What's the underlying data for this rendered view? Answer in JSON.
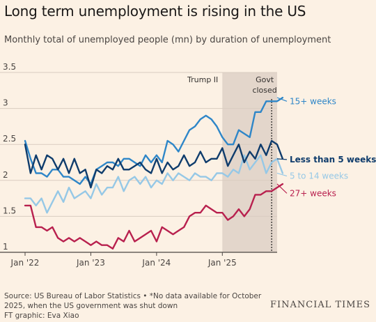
{
  "header": {
    "title": "Long term unemployment is rising in the US",
    "subtitle": "Monthly total of unemployed people (mn) by duration of unemployment"
  },
  "footer": {
    "source_line1": "Source: US Bureau of Labor Statistics • *No data available for October",
    "source_line2": "2025, when the US government was shut down",
    "credit": "FT graphic: Eva Xiao",
    "brand": "FINANCIAL TIMES"
  },
  "colors": {
    "background": "#fcf1e4",
    "shade": "#e3d6cb",
    "grid": "#d9ccc0",
    "series_15plus": "#2e86c8",
    "series_lt5": "#0f3c6c",
    "series_5to14": "#96c8e6",
    "series_27plus": "#b8204e"
  },
  "chart_data": {
    "type": "line",
    "title": "Long term unemployment is rising in the US",
    "subtitle": "Monthly total of unemployed people (mn) by duration of unemployment",
    "xlabel": "",
    "ylabel": "",
    "ylim": [
      1,
      3.5
    ],
    "yticks": [
      1,
      1.5,
      2,
      2.5,
      3,
      3.5
    ],
    "xticks": [
      "Jan '22",
      "Jan '23",
      "Jan '24",
      "Jan '25"
    ],
    "grid": true,
    "legend": "direct labels at right end of lines",
    "x_start": "2022-01",
    "x_end": "2025-11",
    "annotations": [
      {
        "label": "Trump II",
        "type": "shaded_region",
        "from": "2025-01",
        "to": "2025-11"
      },
      {
        "label": "Govt",
        "label2": "closed",
        "type": "dotted_vline",
        "at": "2025-10"
      }
    ],
    "series": [
      {
        "name": "15+ weeks",
        "color": "#2e86c8",
        "values": [
          2.55,
          2.3,
          2.1,
          2.1,
          2.05,
          2.15,
          2.15,
          2.05,
          2.05,
          2.0,
          1.95,
          2.05,
          1.95,
          2.15,
          2.2,
          2.25,
          2.25,
          2.2,
          2.3,
          2.3,
          2.25,
          2.2,
          2.35,
          2.25,
          2.35,
          2.25,
          2.55,
          2.5,
          2.4,
          2.55,
          2.7,
          2.75,
          2.85,
          2.9,
          2.85,
          2.75,
          2.6,
          2.5,
          2.5,
          2.7,
          2.65,
          2.6,
          2.95,
          2.95,
          3.1,
          3.1,
          3.1,
          3.15
        ]
      },
      {
        "name": "Less than 5 weeks",
        "color": "#0f3c6c",
        "values": [
          2.5,
          2.1,
          2.35,
          2.15,
          2.35,
          2.3,
          2.15,
          2.3,
          2.1,
          2.3,
          2.1,
          2.15,
          1.9,
          2.15,
          2.1,
          2.2,
          2.15,
          2.3,
          2.15,
          2.15,
          2.2,
          2.25,
          2.15,
          2.1,
          2.3,
          2.1,
          2.25,
          2.15,
          2.2,
          2.35,
          2.2,
          2.25,
          2.4,
          2.25,
          2.3,
          2.3,
          2.45,
          2.2,
          2.35,
          2.5,
          2.25,
          2.4,
          2.3,
          2.5,
          2.35,
          2.55,
          2.5,
          2.3
        ]
      },
      {
        "name": "5 to 14 weeks",
        "color": "#96c8e6",
        "values": [
          1.75,
          1.75,
          1.65,
          1.75,
          1.55,
          1.7,
          1.85,
          1.7,
          1.9,
          1.75,
          1.8,
          1.85,
          1.75,
          1.95,
          1.8,
          1.9,
          1.9,
          2.05,
          1.85,
          2.0,
          2.05,
          1.95,
          2.05,
          1.9,
          2.0,
          1.95,
          2.1,
          2.0,
          2.1,
          2.05,
          2.0,
          2.1,
          2.05,
          2.05,
          2.0,
          2.1,
          2.1,
          2.05,
          2.15,
          2.1,
          2.35,
          2.15,
          2.25,
          2.35,
          2.1,
          2.25,
          2.3,
          2.1
        ]
      },
      {
        "name": "27+ weeks",
        "color": "#b8204e",
        "values": [
          1.65,
          1.65,
          1.35,
          1.35,
          1.3,
          1.35,
          1.2,
          1.15,
          1.2,
          1.15,
          1.2,
          1.15,
          1.1,
          1.15,
          1.1,
          1.1,
          1.05,
          1.2,
          1.15,
          1.3,
          1.15,
          1.2,
          1.25,
          1.3,
          1.15,
          1.35,
          1.3,
          1.25,
          1.3,
          1.35,
          1.5,
          1.55,
          1.55,
          1.65,
          1.6,
          1.55,
          1.55,
          1.45,
          1.5,
          1.6,
          1.5,
          1.6,
          1.8,
          1.8,
          1.85,
          1.85,
          1.9,
          1.95
        ]
      }
    ]
  }
}
